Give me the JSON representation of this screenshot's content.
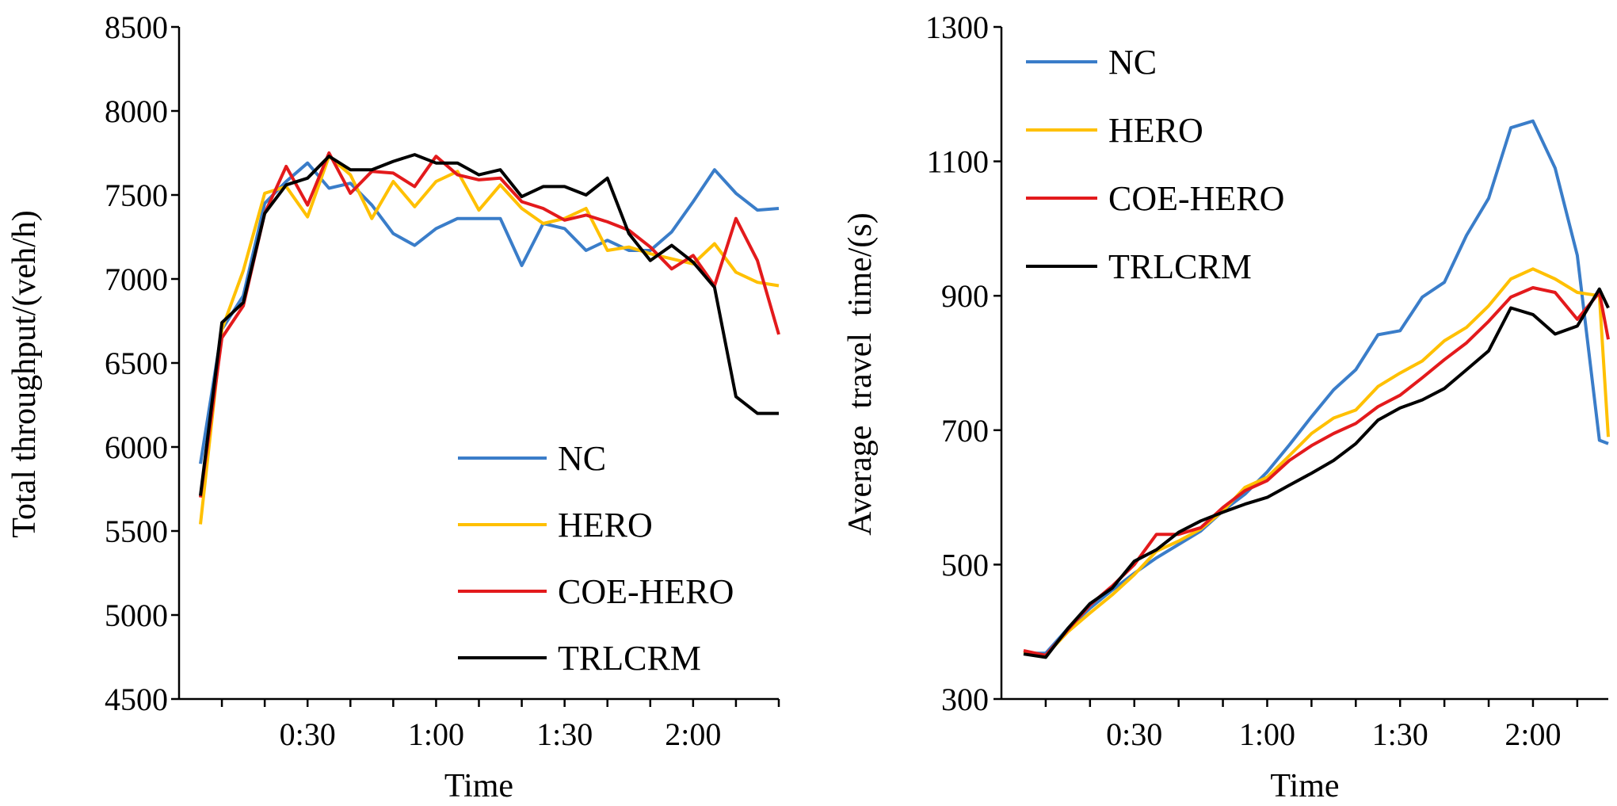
{
  "chart_data": [
    {
      "type": "line",
      "id": "throughput",
      "xlabel": "Time",
      "ylabel": "Total throughput/(veh/h)",
      "ylim": [
        4500,
        8500
      ],
      "yticks": [
        4500,
        5000,
        5500,
        6000,
        6500,
        7000,
        7500,
        8000,
        8500
      ],
      "xlim": [
        0,
        140
      ],
      "xticks": [
        {
          "value": 30,
          "label": "0:30"
        },
        {
          "value": 60,
          "label": "1:00"
        },
        {
          "value": 90,
          "label": "1:30"
        },
        {
          "value": 120,
          "label": "2:00"
        }
      ],
      "x": [
        5,
        10,
        15,
        20,
        25,
        30,
        35,
        40,
        45,
        50,
        55,
        60,
        65,
        70,
        75,
        80,
        85,
        90,
        95,
        100,
        105,
        110,
        115,
        120,
        125,
        130,
        135,
        140
      ],
      "legend_position": "bottom-right",
      "series": [
        {
          "name": "NC",
          "color": "#3A7DC9",
          "values": [
            5900,
            6700,
            6900,
            7450,
            7580,
            7690,
            7540,
            7570,
            7440,
            7270,
            7200,
            7300,
            7360,
            7360,
            7360,
            7080,
            7330,
            7300,
            7170,
            7230,
            7170,
            7170,
            7280,
            7460,
            7650,
            7510,
            7410,
            7420
          ]
        },
        {
          "name": "HERO",
          "color": "#FFC000",
          "values": [
            5540,
            6700,
            7050,
            7510,
            7550,
            7370,
            7730,
            7620,
            7360,
            7580,
            7430,
            7580,
            7640,
            7410,
            7560,
            7420,
            7330,
            7360,
            7420,
            7170,
            7190,
            7150,
            7120,
            7090,
            7210,
            7040,
            6980,
            6960
          ]
        },
        {
          "name": "COE-HERO",
          "color": "#E31A1C",
          "values": [
            5700,
            6650,
            6840,
            7390,
            7670,
            7440,
            7750,
            7510,
            7640,
            7630,
            7550,
            7730,
            7620,
            7590,
            7600,
            7460,
            7420,
            7350,
            7380,
            7340,
            7290,
            7190,
            7060,
            7140,
            6960,
            7360,
            7110,
            6670
          ]
        },
        {
          "name": "TRLCRM",
          "color": "#000000",
          "values": [
            5710,
            6740,
            6860,
            7390,
            7560,
            7600,
            7730,
            7650,
            7650,
            7700,
            7740,
            7690,
            7690,
            7620,
            7650,
            7490,
            7550,
            7550,
            7500,
            7600,
            7270,
            7110,
            7200,
            7100,
            6950,
            6300,
            6200,
            6200
          ]
        }
      ]
    },
    {
      "type": "line",
      "id": "travel_time",
      "xlabel": "Time",
      "ylabel": "Average  travel  time/(s)",
      "ylim": [
        300,
        1300
      ],
      "yticks": [
        300,
        500,
        700,
        900,
        1100,
        1300
      ],
      "xlim": [
        0,
        137
      ],
      "xticks": [
        {
          "value": 30,
          "label": "0:30"
        },
        {
          "value": 60,
          "label": "1:00"
        },
        {
          "value": 90,
          "label": "1:30"
        },
        {
          "value": 120,
          "label": "2:00"
        }
      ],
      "x": [
        5,
        10,
        15,
        20,
        25,
        30,
        35,
        40,
        45,
        50,
        55,
        60,
        65,
        70,
        75,
        80,
        85,
        90,
        95,
        100,
        105,
        110,
        115,
        120,
        125,
        130,
        135,
        137
      ],
      "legend_position": "top-left",
      "series": [
        {
          "name": "NC",
          "color": "#3A7DC9",
          "values": [
            368,
            368,
            405,
            435,
            462,
            487,
            510,
            530,
            550,
            580,
            605,
            638,
            678,
            720,
            760,
            790,
            842,
            848,
            898,
            920,
            990,
            1045,
            1150,
            1160,
            1090,
            960,
            685,
            680
          ]
        },
        {
          "name": "HERO",
          "color": "#FFC000",
          "values": [
            370,
            365,
            400,
            428,
            455,
            485,
            520,
            535,
            553,
            580,
            615,
            630,
            662,
            695,
            718,
            730,
            765,
            785,
            803,
            833,
            853,
            885,
            925,
            940,
            925,
            905,
            900,
            690
          ]
        },
        {
          "name": "COE-HERO",
          "color": "#E31A1C",
          "values": [
            372,
            365,
            403,
            440,
            468,
            500,
            545,
            545,
            555,
            585,
            610,
            625,
            655,
            677,
            695,
            710,
            735,
            752,
            778,
            805,
            830,
            862,
            898,
            912,
            905,
            865,
            905,
            835
          ]
        },
        {
          "name": "TRLCRM",
          "color": "#000000",
          "values": [
            367,
            362,
            405,
            442,
            465,
            505,
            522,
            548,
            565,
            578,
            590,
            600,
            618,
            636,
            655,
            680,
            715,
            733,
            745,
            762,
            790,
            818,
            882,
            872,
            843,
            855,
            910,
            882
          ]
        }
      ]
    }
  ]
}
